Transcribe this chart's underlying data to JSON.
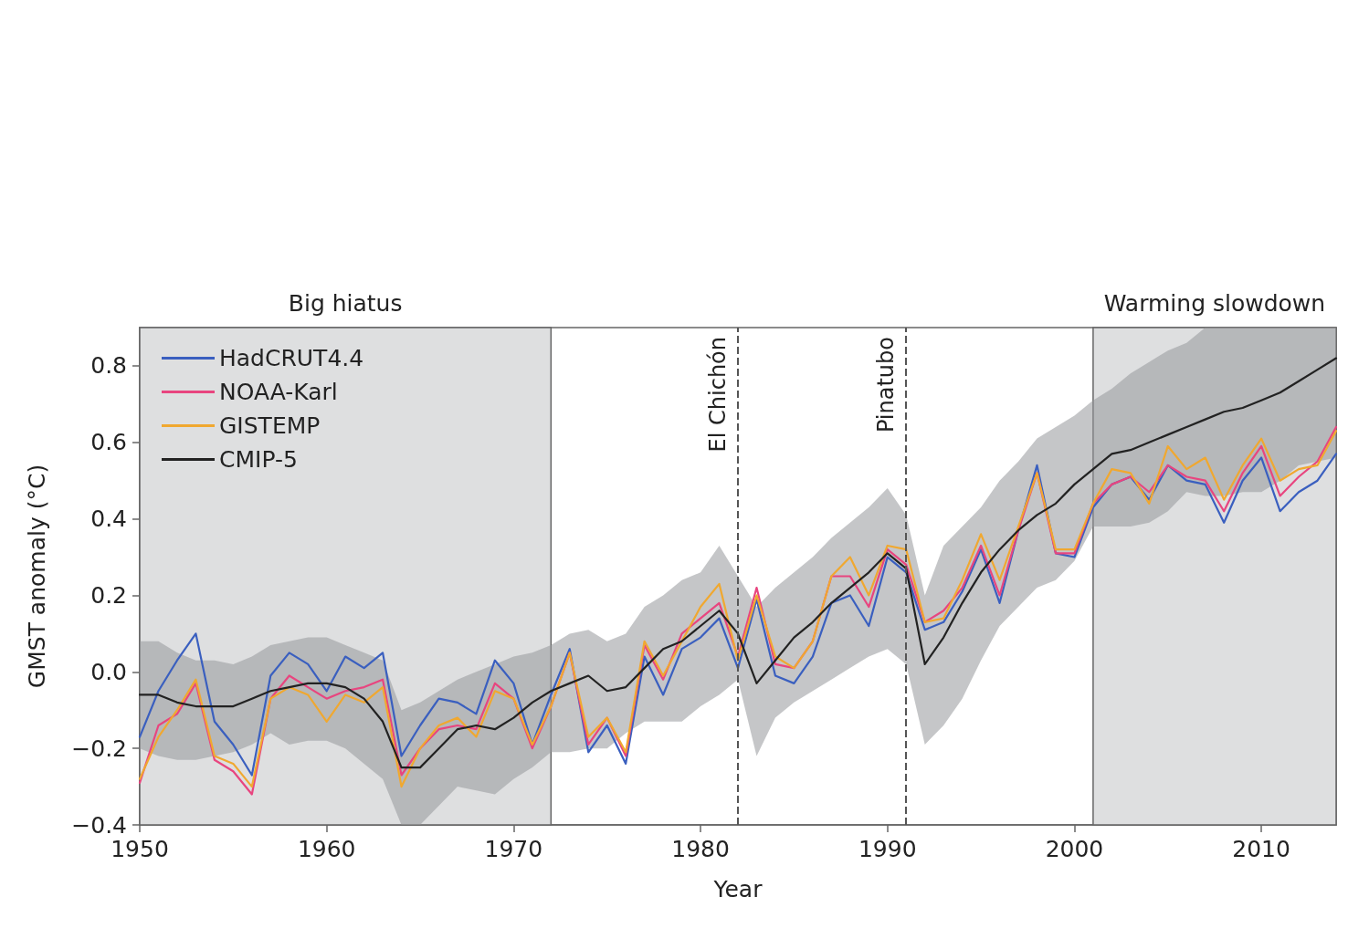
{
  "chart_data": {
    "type": "line",
    "xlabel": "Year",
    "ylabel": "GMST anomaly (°C)",
    "x": [
      1950,
      1951,
      1952,
      1953,
      1954,
      1955,
      1956,
      1957,
      1958,
      1959,
      1960,
      1961,
      1962,
      1963,
      1964,
      1965,
      1966,
      1967,
      1968,
      1969,
      1970,
      1971,
      1972,
      1973,
      1974,
      1975,
      1976,
      1977,
      1978,
      1979,
      1980,
      1981,
      1982,
      1983,
      1984,
      1985,
      1986,
      1987,
      1988,
      1989,
      1990,
      1991,
      1992,
      1993,
      1994,
      1995,
      1996,
      1997,
      1998,
      1999,
      2000,
      2001,
      2002,
      2003,
      2004,
      2005,
      2006,
      2007,
      2008,
      2009,
      2010,
      2011,
      2012,
      2013,
      2014
    ],
    "series": [
      {
        "name": "HadCRUT4.4",
        "color": "#3a5fbf",
        "values": [
          -0.17,
          -0.05,
          0.03,
          0.1,
          -0.13,
          -0.19,
          -0.27,
          -0.01,
          0.05,
          0.02,
          -0.05,
          0.04,
          0.01,
          0.05,
          -0.22,
          -0.14,
          -0.07,
          -0.08,
          -0.11,
          0.03,
          -0.03,
          -0.19,
          -0.06,
          0.06,
          -0.21,
          -0.14,
          -0.24,
          0.04,
          -0.06,
          0.06,
          0.09,
          0.14,
          0.01,
          0.19,
          -0.01,
          -0.03,
          0.04,
          0.18,
          0.2,
          0.12,
          0.3,
          0.26,
          0.11,
          0.13,
          0.21,
          0.32,
          0.18,
          0.37,
          0.54,
          0.31,
          0.3,
          0.43,
          0.49,
          0.51,
          0.45,
          0.54,
          0.5,
          0.49,
          0.39,
          0.5,
          0.56,
          0.42,
          0.47,
          0.5,
          0.57
        ]
      },
      {
        "name": "NOAA-Karl",
        "color": "#e8457f",
        "values": [
          -0.29,
          -0.14,
          -0.11,
          -0.03,
          -0.23,
          -0.26,
          -0.32,
          -0.07,
          -0.01,
          -0.04,
          -0.07,
          -0.05,
          -0.04,
          -0.02,
          -0.27,
          -0.2,
          -0.15,
          -0.14,
          -0.15,
          -0.03,
          -0.07,
          -0.2,
          -0.09,
          0.05,
          -0.19,
          -0.12,
          -0.22,
          0.07,
          -0.02,
          0.1,
          0.14,
          0.18,
          0.04,
          0.22,
          0.02,
          0.01,
          0.08,
          0.25,
          0.25,
          0.17,
          0.32,
          0.28,
          0.13,
          0.16,
          0.22,
          0.33,
          0.2,
          0.37,
          0.52,
          0.31,
          0.31,
          0.44,
          0.49,
          0.51,
          0.47,
          0.54,
          0.51,
          0.5,
          0.42,
          0.52,
          0.59,
          0.46,
          0.51,
          0.55,
          0.64
        ]
      },
      {
        "name": "GISTEMP",
        "color": "#f0a830",
        "values": [
          -0.28,
          -0.17,
          -0.1,
          -0.02,
          -0.22,
          -0.24,
          -0.3,
          -0.07,
          -0.04,
          -0.06,
          -0.13,
          -0.06,
          -0.08,
          -0.04,
          -0.3,
          -0.2,
          -0.14,
          -0.12,
          -0.17,
          -0.05,
          -0.07,
          -0.19,
          -0.09,
          0.05,
          -0.17,
          -0.12,
          -0.21,
          0.08,
          -0.01,
          0.08,
          0.17,
          0.23,
          0.03,
          0.2,
          0.04,
          0.01,
          0.08,
          0.25,
          0.3,
          0.2,
          0.33,
          0.32,
          0.13,
          0.14,
          0.24,
          0.36,
          0.24,
          0.38,
          0.52,
          0.32,
          0.32,
          0.44,
          0.53,
          0.52,
          0.44,
          0.59,
          0.53,
          0.56,
          0.45,
          0.54,
          0.61,
          0.5,
          0.53,
          0.54,
          0.63
        ]
      },
      {
        "name": "CMIP-5",
        "color": "#222222",
        "values": [
          -0.06,
          -0.06,
          -0.08,
          -0.09,
          -0.09,
          -0.09,
          -0.07,
          -0.05,
          -0.04,
          -0.03,
          -0.03,
          -0.04,
          -0.07,
          -0.13,
          -0.25,
          -0.25,
          -0.2,
          -0.15,
          -0.14,
          -0.15,
          -0.12,
          -0.08,
          -0.05,
          -0.03,
          -0.01,
          -0.05,
          -0.04,
          0.01,
          0.06,
          0.08,
          0.12,
          0.16,
          0.1,
          -0.03,
          0.03,
          0.09,
          0.13,
          0.18,
          0.22,
          0.26,
          0.31,
          0.27,
          0.02,
          0.09,
          0.18,
          0.26,
          0.32,
          0.37,
          0.41,
          0.44,
          0.49,
          0.53,
          0.57,
          0.58,
          0.6,
          0.62,
          0.64,
          0.66,
          0.68,
          0.69,
          0.71,
          0.73,
          0.76,
          0.79,
          0.82
        ],
        "lower": [
          -0.2,
          -0.22,
          -0.23,
          -0.23,
          -0.22,
          -0.21,
          -0.19,
          -0.16,
          -0.19,
          -0.18,
          -0.18,
          -0.2,
          -0.24,
          -0.28,
          -0.4,
          -0.4,
          -0.35,
          -0.3,
          -0.31,
          -0.32,
          -0.28,
          -0.25,
          -0.21,
          -0.21,
          -0.2,
          -0.2,
          -0.16,
          -0.13,
          -0.13,
          -0.13,
          -0.09,
          -0.06,
          -0.02,
          -0.22,
          -0.12,
          -0.08,
          -0.05,
          -0.02,
          0.01,
          0.04,
          0.06,
          0.02,
          -0.19,
          -0.14,
          -0.07,
          0.03,
          0.12,
          0.17,
          0.22,
          0.24,
          0.29,
          0.38,
          0.38,
          0.38,
          0.39,
          0.42,
          0.47,
          0.46,
          0.46,
          0.47,
          0.47,
          0.5,
          0.54,
          0.55,
          0.56
        ],
        "upper": [
          0.08,
          0.08,
          0.05,
          0.03,
          0.03,
          0.02,
          0.04,
          0.07,
          0.08,
          0.09,
          0.09,
          0.07,
          0.05,
          0.03,
          -0.1,
          -0.08,
          -0.05,
          -0.02,
          0.0,
          0.02,
          0.04,
          0.05,
          0.07,
          0.1,
          0.11,
          0.08,
          0.1,
          0.17,
          0.2,
          0.24,
          0.26,
          0.33,
          0.25,
          0.17,
          0.22,
          0.26,
          0.3,
          0.35,
          0.39,
          0.43,
          0.48,
          0.41,
          0.2,
          0.33,
          0.38,
          0.43,
          0.5,
          0.55,
          0.61,
          0.64,
          0.67,
          0.71,
          0.74,
          0.78,
          0.81,
          0.84,
          0.86,
          0.9,
          0.9,
          0.9,
          0.9,
          0.9,
          0.9,
          0.9,
          0.9
        ]
      }
    ],
    "xlim": [
      1950,
      2014
    ],
    "xticks": [
      1950,
      1960,
      1970,
      1980,
      1990,
      2000,
      2010
    ],
    "ylim": [
      -0.4,
      0.9
    ],
    "yticks": [
      {
        "value": -0.4,
        "label": "−0.4"
      },
      {
        "value": -0.2,
        "label": "−0.2"
      },
      {
        "value": 0,
        "label": "0.0"
      },
      {
        "value": 0.2,
        "label": "0.2"
      },
      {
        "value": 0.4,
        "label": "0.4"
      },
      {
        "value": 0.6,
        "label": "0.6"
      },
      {
        "value": 0.8,
        "label": "0.8"
      }
    ],
    "bands": [
      {
        "axis": "x",
        "from": 1950,
        "to": 1972,
        "label": "Big hiatus",
        "color": "#dedfe0"
      },
      {
        "axis": "x",
        "from": 2001,
        "to": 2014,
        "label": "Warming slowdown",
        "color": "#dedfe0"
      }
    ],
    "ref_lines": [
      {
        "axis": "x",
        "value": 1982,
        "label": "El Chichón",
        "line_style": "dashed",
        "color": "#555555"
      },
      {
        "axis": "x",
        "value": 1991,
        "label": "Pinatubo",
        "line_style": "dashed",
        "color": "#555555"
      }
    ],
    "legend": "top left",
    "grid": false,
    "marker": "none",
    "line_style": "solid"
  }
}
